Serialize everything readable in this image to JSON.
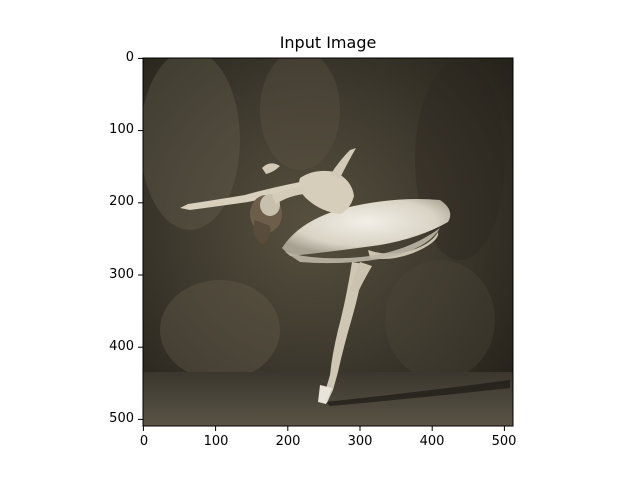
{
  "figure": {
    "title": "Input Image",
    "image_subject": "ballerina",
    "colors": {
      "background": "#ffffff",
      "backdrop_dark": "#2c2820",
      "backdrop_mid": "#4a4438",
      "floor": "#3a362e",
      "tutu": "#e6e1d6",
      "skin": "#d2c9b8"
    }
  },
  "axes": {
    "x": {
      "min": 0,
      "max": 512,
      "ticks": [
        0,
        100,
        200,
        300,
        400,
        500
      ]
    },
    "y": {
      "min": 0,
      "max": 512,
      "ticks": [
        0,
        100,
        200,
        300,
        400,
        500
      ]
    },
    "tick_labels_x": [
      "0",
      "100",
      "200",
      "300",
      "400",
      "500"
    ],
    "tick_labels_y": [
      "0",
      "100",
      "200",
      "300",
      "400",
      "500"
    ]
  }
}
